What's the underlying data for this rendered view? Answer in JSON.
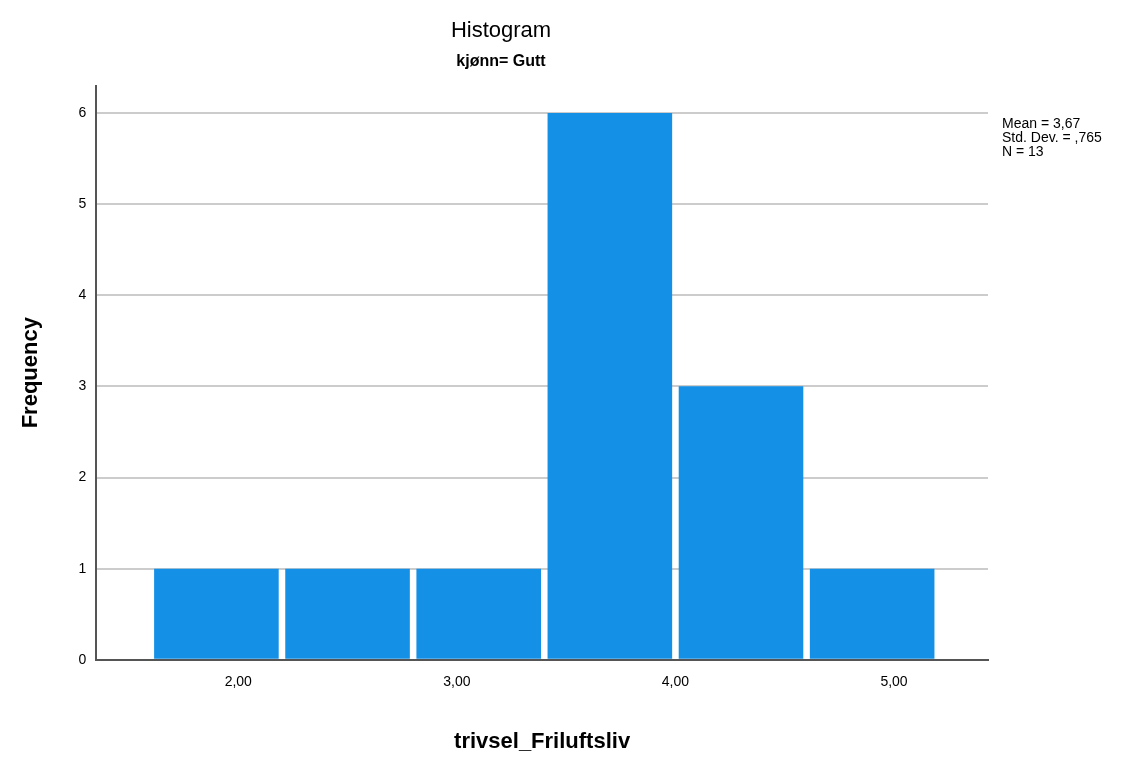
{
  "chart_data": {
    "type": "histogram",
    "title": "Histogram",
    "subtitle": "kjønn= Gutt",
    "xlabel": "trivsel_Friluftsliv",
    "ylabel": "Frequency",
    "bins": [
      1.6,
      2.2,
      2.8,
      3.4,
      4.0,
      4.6,
      5.2
    ],
    "values": [
      1,
      1,
      1,
      6,
      3,
      1
    ],
    "color": "#1490e6",
    "xlim": [
      1.35,
      5.43
    ],
    "xticks": [
      {
        "value": 2,
        "label": "2,00"
      },
      {
        "value": 3,
        "label": "3,00"
      },
      {
        "value": 4,
        "label": "4,00"
      },
      {
        "value": 5,
        "label": "5,00"
      }
    ],
    "ylim": [
      0,
      6.3
    ],
    "yticks": [
      0,
      1,
      2,
      3,
      4,
      5,
      6
    ],
    "grid": "y",
    "annotations": [
      "Mean = 3,67",
      "Std. Dev. = ,765",
      "N = 13"
    ]
  }
}
